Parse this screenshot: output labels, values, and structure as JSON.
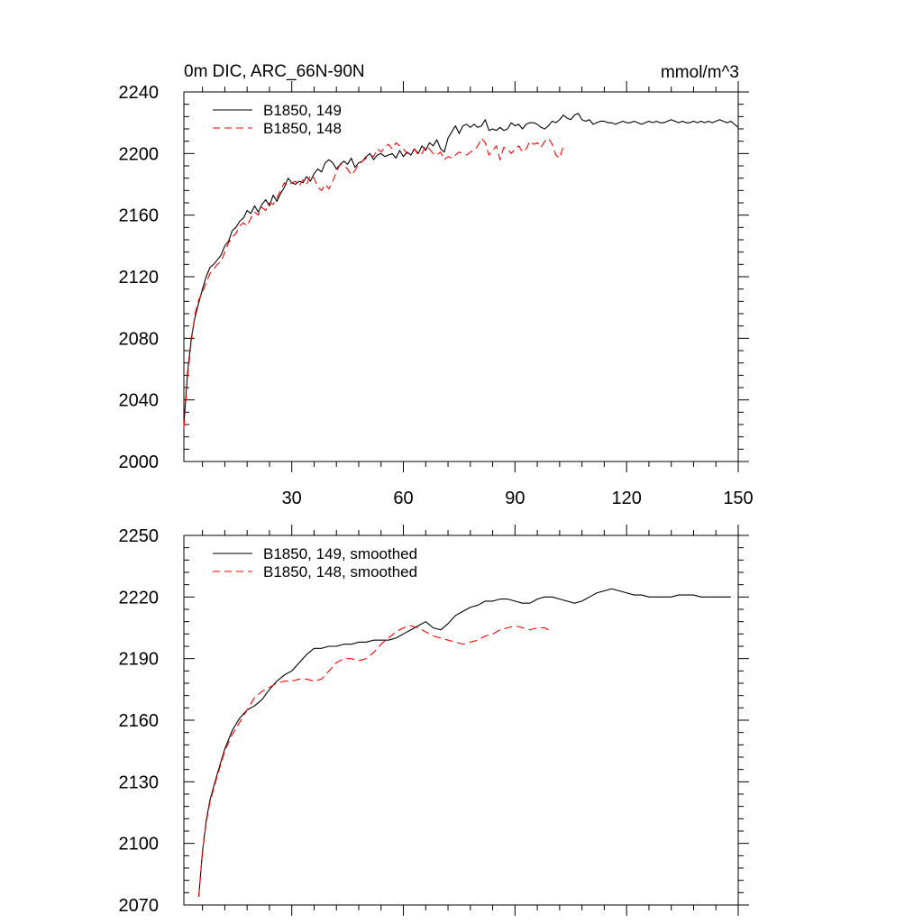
{
  "chart_data": [
    {
      "type": "line",
      "title": "0m DIC, ARC_66N-90N",
      "units": "mmol/m^3",
      "xlim": [
        1,
        150
      ],
      "ylim": [
        2000,
        2240
      ],
      "xticks": [
        30,
        60,
        90,
        120,
        150
      ],
      "yticks": [
        2000,
        2040,
        2080,
        2120,
        2160,
        2200,
        2240
      ],
      "grid": false,
      "legend_position": "top-left",
      "series": [
        {
          "name": "B1850, 149",
          "color": "#000000",
          "dash": "solid",
          "x": [
            1,
            2,
            3,
            4,
            5,
            6,
            7,
            8,
            9,
            10,
            11,
            12,
            13,
            14,
            15,
            16,
            17,
            18,
            19,
            20,
            21,
            22,
            23,
            24,
            25,
            26,
            27,
            28,
            29,
            30,
            31,
            32,
            33,
            34,
            35,
            36,
            37,
            38,
            39,
            40,
            41,
            42,
            43,
            44,
            45,
            46,
            47,
            48,
            49,
            50,
            51,
            52,
            53,
            54,
            55,
            56,
            57,
            58,
            59,
            60,
            61,
            62,
            63,
            64,
            65,
            66,
            67,
            68,
            69,
            70,
            71,
            72,
            73,
            74,
            75,
            76,
            77,
            78,
            79,
            80,
            81,
            82,
            83,
            84,
            85,
            86,
            87,
            88,
            89,
            90,
            91,
            92,
            93,
            94,
            95,
            96,
            97,
            98,
            99,
            100,
            101,
            102,
            103,
            104,
            105,
            106,
            107,
            108,
            109,
            110,
            111,
            112,
            113,
            114,
            115,
            116,
            117,
            118,
            119,
            120,
            121,
            122,
            123,
            124,
            125,
            126,
            127,
            128,
            129,
            130,
            131,
            132,
            133,
            134,
            135,
            136,
            137,
            138,
            139,
            140,
            141,
            142,
            143,
            144,
            145,
            146,
            147,
            148,
            149,
            150
          ],
          "y": [
            2024,
            2058,
            2080,
            2094,
            2103,
            2112,
            2120,
            2126,
            2128,
            2131,
            2134,
            2140,
            2143,
            2150,
            2152,
            2156,
            2158,
            2163,
            2161,
            2166,
            2162,
            2167,
            2170,
            2166,
            2173,
            2169,
            2174,
            2178,
            2184,
            2181,
            2180,
            2182,
            2181,
            2185,
            2182,
            2187,
            2190,
            2188,
            2194,
            2196,
            2194,
            2190,
            2193,
            2195,
            2193,
            2197,
            2191,
            2194,
            2195,
            2198,
            2200,
            2196,
            2199,
            2200,
            2198,
            2199,
            2200,
            2197,
            2202,
            2198,
            2201,
            2199,
            2203,
            2200,
            2205,
            2202,
            2207,
            2205,
            2209,
            2203,
            2201,
            2210,
            2214,
            2218,
            2213,
            2218,
            2219,
            2217,
            2219,
            2217,
            2218,
            2222,
            2215,
            2216,
            2215,
            2217,
            2215,
            2216,
            2220,
            2218,
            2219,
            2216,
            2219,
            2220,
            2220,
            2219,
            2217,
            2216,
            2218,
            2221,
            2220,
            2222,
            2225,
            2223,
            2222,
            2225,
            2226,
            2222,
            2221,
            2222,
            2219,
            2220,
            2221,
            2221,
            2220,
            2220,
            2219,
            2220,
            2221,
            2220,
            2220,
            2221,
            2220,
            2219,
            2220,
            2221,
            2220,
            2221,
            2220,
            2220,
            2221,
            2222,
            2221,
            2220,
            2221,
            2220,
            2220,
            2221,
            2220,
            2221,
            2220,
            2221,
            2220,
            2221,
            2222,
            2221,
            2220,
            2221,
            2219,
            2217
          ]
        },
        {
          "name": "B1850, 148",
          "color": "#ff0000",
          "dash": "dashed",
          "x": [
            1,
            2,
            3,
            4,
            5,
            6,
            7,
            8,
            9,
            10,
            11,
            12,
            13,
            14,
            15,
            16,
            17,
            18,
            19,
            20,
            21,
            22,
            23,
            24,
            25,
            26,
            27,
            28,
            29,
            30,
            31,
            32,
            33,
            34,
            35,
            36,
            37,
            38,
            39,
            40,
            41,
            42,
            43,
            44,
            45,
            46,
            47,
            48,
            49,
            50,
            51,
            52,
            53,
            54,
            55,
            56,
            57,
            58,
            59,
            60,
            61,
            62,
            63,
            64,
            65,
            66,
            67,
            68,
            69,
            70,
            71,
            72,
            73,
            74,
            75,
            76,
            77,
            78,
            79,
            80,
            81,
            82,
            83,
            84,
            85,
            86,
            87,
            88,
            89,
            90,
            91,
            92,
            93,
            94,
            95,
            96,
            97,
            98,
            99,
            100,
            101,
            102,
            103
          ],
          "y": [
            2022,
            2055,
            2078,
            2096,
            2105,
            2110,
            2116,
            2122,
            2125,
            2128,
            2130,
            2136,
            2142,
            2146,
            2148,
            2153,
            2155,
            2153,
            2158,
            2162,
            2160,
            2165,
            2163,
            2168,
            2167,
            2171,
            2176,
            2181,
            2179,
            2181,
            2182,
            2179,
            2183,
            2180,
            2186,
            2184,
            2178,
            2176,
            2180,
            2177,
            2182,
            2188,
            2193,
            2192,
            2190,
            2186,
            2189,
            2193,
            2195,
            2197,
            2199,
            2198,
            2203,
            2201,
            2204,
            2206,
            2203,
            2207,
            2205,
            2203,
            2200,
            2201,
            2203,
            2199,
            2200,
            2205,
            2203,
            2200,
            2199,
            2201,
            2196,
            2198,
            2197,
            2199,
            2201,
            2200,
            2199,
            2201,
            2202,
            2205,
            2210,
            2207,
            2199,
            2202,
            2205,
            2196,
            2204,
            2203,
            2200,
            2203,
            2205,
            2201,
            2203,
            2208,
            2206,
            2207,
            2204,
            2208,
            2210,
            2206,
            2199,
            2197,
            2205
          ]
        }
      ]
    },
    {
      "type": "line",
      "xlim": [
        1,
        150
      ],
      "ylim": [
        2070,
        2250
      ],
      "xticks": [
        30,
        60,
        90,
        120,
        150
      ],
      "yticks": [
        2070,
        2100,
        2130,
        2160,
        2190,
        2220,
        2250
      ],
      "grid": false,
      "legend_position": "top-left",
      "series": [
        {
          "name": "B1850, 149, smoothed",
          "color": "#000000",
          "dash": "solid",
          "x": [
            5,
            6,
            7,
            8,
            10,
            12,
            14,
            16,
            18,
            20,
            22,
            24,
            26,
            28,
            30,
            32,
            34,
            36,
            38,
            40,
            42,
            44,
            46,
            48,
            50,
            52,
            54,
            56,
            58,
            60,
            62,
            64,
            66,
            68,
            70,
            72,
            74,
            76,
            78,
            80,
            82,
            84,
            86,
            88,
            90,
            92,
            94,
            96,
            98,
            100,
            102,
            104,
            106,
            108,
            110,
            112,
            114,
            116,
            118,
            120,
            122,
            124,
            126,
            128,
            130,
            132,
            134,
            136,
            138,
            140,
            142,
            144,
            146,
            148
          ],
          "y": [
            2074,
            2096,
            2111,
            2121,
            2134,
            2146,
            2155,
            2161,
            2165,
            2167,
            2170,
            2175,
            2179,
            2182,
            2184,
            2188,
            2192,
            2195,
            2195,
            2196,
            2196,
            2197,
            2197,
            2198,
            2198,
            2199,
            2199,
            2199,
            2200,
            2202,
            2204,
            2206,
            2208,
            2205,
            2204,
            2207,
            2211,
            2213,
            2215,
            2216,
            2218,
            2218,
            2219,
            2219,
            2218,
            2217,
            2217,
            2219,
            2220,
            2220,
            2219,
            2218,
            2217,
            2218,
            2220,
            2222,
            2223,
            2224,
            2223,
            2222,
            2221,
            2221,
            2220,
            2220,
            2220,
            2220,
            2221,
            2221,
            2221,
            2220,
            2220,
            2220,
            2220,
            2220
          ]
        },
        {
          "name": "B1850, 148, smoothed",
          "color": "#ff0000",
          "dash": "dashed",
          "x": [
            5,
            6,
            7,
            8,
            10,
            12,
            14,
            16,
            18,
            20,
            22,
            24,
            26,
            28,
            30,
            32,
            34,
            36,
            38,
            40,
            42,
            44,
            46,
            48,
            50,
            52,
            54,
            56,
            58,
            60,
            62,
            64,
            66,
            68,
            70,
            72,
            74,
            76,
            78,
            80,
            82,
            84,
            86,
            88,
            90,
            92,
            94,
            96,
            98,
            99
          ],
          "y": [
            2074,
            2096,
            2110,
            2120,
            2133,
            2145,
            2153,
            2159,
            2165,
            2171,
            2174,
            2176,
            2178,
            2179,
            2179,
            2180,
            2180,
            2179,
            2180,
            2184,
            2188,
            2190,
            2190,
            2189,
            2190,
            2193,
            2197,
            2200,
            2203,
            2205,
            2206,
            2205,
            2203,
            2201,
            2200,
            2199,
            2198,
            2197,
            2198,
            2199,
            2201,
            2202,
            2204,
            2205,
            2206,
            2205,
            2204,
            2205,
            2205,
            2204
          ]
        }
      ]
    }
  ]
}
